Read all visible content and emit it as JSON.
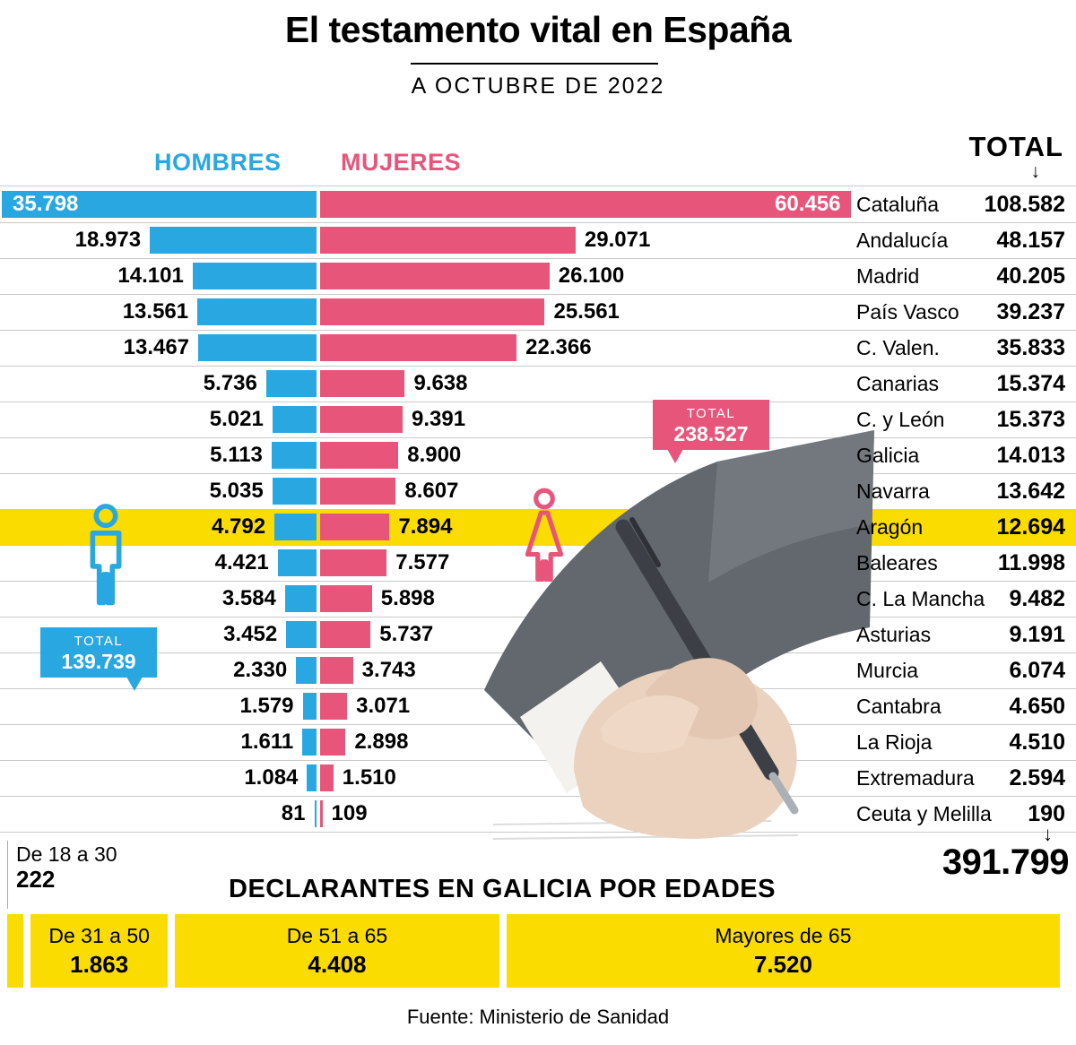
{
  "page": {
    "title": "El testamento vital en España",
    "subtitle": "A OCTUBRE DE 2022",
    "source": "Fuente: Ministerio de Sanidad"
  },
  "legend": {
    "men": "HOMBRES",
    "women": "MUJERES",
    "total": "TOTAL",
    "arrow_down": "↓"
  },
  "colors": {
    "men": "#29a7e0",
    "women": "#e8557a",
    "highlight": "#fadc00",
    "separator": "#c9c9c9"
  },
  "bubbles": {
    "men": {
      "label": "TOTAL",
      "value": "139.739"
    },
    "women": {
      "label": "TOTAL",
      "value": "238.527"
    }
  },
  "grand_total": {
    "value": "391.799",
    "arrow": "↓"
  },
  "chart_data": [
    {
      "type": "bar",
      "orientation": "horizontal-diverging",
      "title": "El testamento vital en España",
      "subtitle": "A OCTUBRE DE 2022",
      "legend_position": "top",
      "categories": [
        "Cataluña",
        "Andalucía",
        "Madrid",
        "País Vasco",
        "C. Valen.",
        "Canarias",
        "C. y León",
        "Galicia",
        "Navarra",
        "Aragón",
        "Baleares",
        "C. La Mancha",
        "Asturias",
        "Murcia",
        "Cantabra",
        "La Rioja",
        "Extremadura",
        "Ceuta y Melilla"
      ],
      "series": [
        {
          "name": "HOMBRES",
          "color": "#29a7e0",
          "total": 139739,
          "values": [
            35798,
            18973,
            14101,
            13561,
            13467,
            5736,
            5021,
            5113,
            5035,
            4792,
            4421,
            3584,
            3452,
            2330,
            1579,
            1611,
            1084,
            81
          ]
        },
        {
          "name": "MUJERES",
          "color": "#e8557a",
          "total": 238527,
          "values": [
            60456,
            29071,
            26100,
            25561,
            22366,
            9638,
            9391,
            8900,
            8607,
            7894,
            7577,
            5898,
            5737,
            3743,
            3071,
            2898,
            1510,
            109
          ]
        }
      ],
      "column_totals": [
        108582,
        48157,
        40205,
        39237,
        35833,
        15374,
        15373,
        14013,
        13642,
        12694,
        11998,
        9482,
        9191,
        6074,
        4650,
        4510,
        2594,
        190
      ],
      "grand_total": 391799,
      "rows": [
        {
          "region": "Cataluña",
          "men": 35798,
          "women": 60456,
          "total": 108582,
          "men_fmt": "35.798",
          "women_fmt": "60.456",
          "total_fmt": "108.582",
          "labels_inside": true
        },
        {
          "region": "Andalucía",
          "men": 18973,
          "women": 29071,
          "total": 48157,
          "men_fmt": "18.973",
          "women_fmt": "29.071",
          "total_fmt": "48.157"
        },
        {
          "region": "Madrid",
          "men": 14101,
          "women": 26100,
          "total": 40205,
          "men_fmt": "14.101",
          "women_fmt": "26.100",
          "total_fmt": "40.205"
        },
        {
          "region": "País Vasco",
          "men": 13561,
          "women": 25561,
          "total": 39237,
          "men_fmt": "13.561",
          "women_fmt": "25.561",
          "total_fmt": "39.237"
        },
        {
          "region": "C. Valen.",
          "men": 13467,
          "women": 22366,
          "total": 35833,
          "men_fmt": "13.467",
          "women_fmt": "22.366",
          "total_fmt": "35.833"
        },
        {
          "region": "Canarias",
          "men": 5736,
          "women": 9638,
          "total": 15374,
          "men_fmt": "5.736",
          "women_fmt": "9.638",
          "total_fmt": "15.374"
        },
        {
          "region": "C. y León",
          "men": 5021,
          "women": 9391,
          "total": 15373,
          "men_fmt": "5.021",
          "women_fmt": "9.391",
          "total_fmt": "15.373"
        },
        {
          "region": "Galicia",
          "men": 5113,
          "women": 8900,
          "total": 14013,
          "men_fmt": "5.113",
          "women_fmt": "8.900",
          "total_fmt": "14.013"
        },
        {
          "region": "Navarra",
          "men": 5035,
          "women": 8607,
          "total": 13642,
          "men_fmt": "5.035",
          "women_fmt": "8.607",
          "total_fmt": "13.642"
        },
        {
          "region": "Aragón",
          "men": 4792,
          "women": 7894,
          "total": 12694,
          "men_fmt": "4.792",
          "women_fmt": "7.894",
          "total_fmt": "12.694",
          "highlight": true
        },
        {
          "region": "Baleares",
          "men": 4421,
          "women": 7577,
          "total": 11998,
          "men_fmt": "4.421",
          "women_fmt": "7.577",
          "total_fmt": "11.998"
        },
        {
          "region": "C. La Mancha",
          "men": 3584,
          "women": 5898,
          "total": 9482,
          "men_fmt": "3.584",
          "women_fmt": "5.898",
          "total_fmt": "9.482"
        },
        {
          "region": "Asturias",
          "men": 3452,
          "women": 5737,
          "total": 9191,
          "men_fmt": "3.452",
          "women_fmt": "5.737",
          "total_fmt": "9.191"
        },
        {
          "region": "Murcia",
          "men": 2330,
          "women": 3743,
          "total": 6074,
          "men_fmt": "2.330",
          "women_fmt": "3.743",
          "total_fmt": "6.074"
        },
        {
          "region": "Cantabra",
          "men": 1579,
          "women": 3071,
          "total": 4650,
          "men_fmt": "1.579",
          "women_fmt": "3.071",
          "total_fmt": "4.650"
        },
        {
          "region": "La Rioja",
          "men": 1611,
          "women": 2898,
          "total": 4510,
          "men_fmt": "1.611",
          "women_fmt": "2.898",
          "total_fmt": "4.510"
        },
        {
          "region": "Extremadura",
          "men": 1084,
          "women": 1510,
          "total": 2594,
          "men_fmt": "1.084",
          "women_fmt": "1.510",
          "total_fmt": "2.594"
        },
        {
          "region": "Ceuta y Melilla",
          "men": 81,
          "women": 109,
          "total": 190,
          "men_fmt": "81",
          "women_fmt": "109",
          "total_fmt": "190"
        }
      ]
    },
    {
      "type": "bar",
      "title": "DECLARANTES EN GALICIA POR EDADES",
      "categories": [
        "De 18 a 30",
        "De 31 a 50",
        "De 51 a 65",
        "Mayores de 65"
      ],
      "values": [
        222,
        1863,
        4408,
        7520
      ],
      "labels": [
        "222",
        "1.863",
        "4.408",
        "7.520"
      ],
      "total": 14013
    }
  ]
}
